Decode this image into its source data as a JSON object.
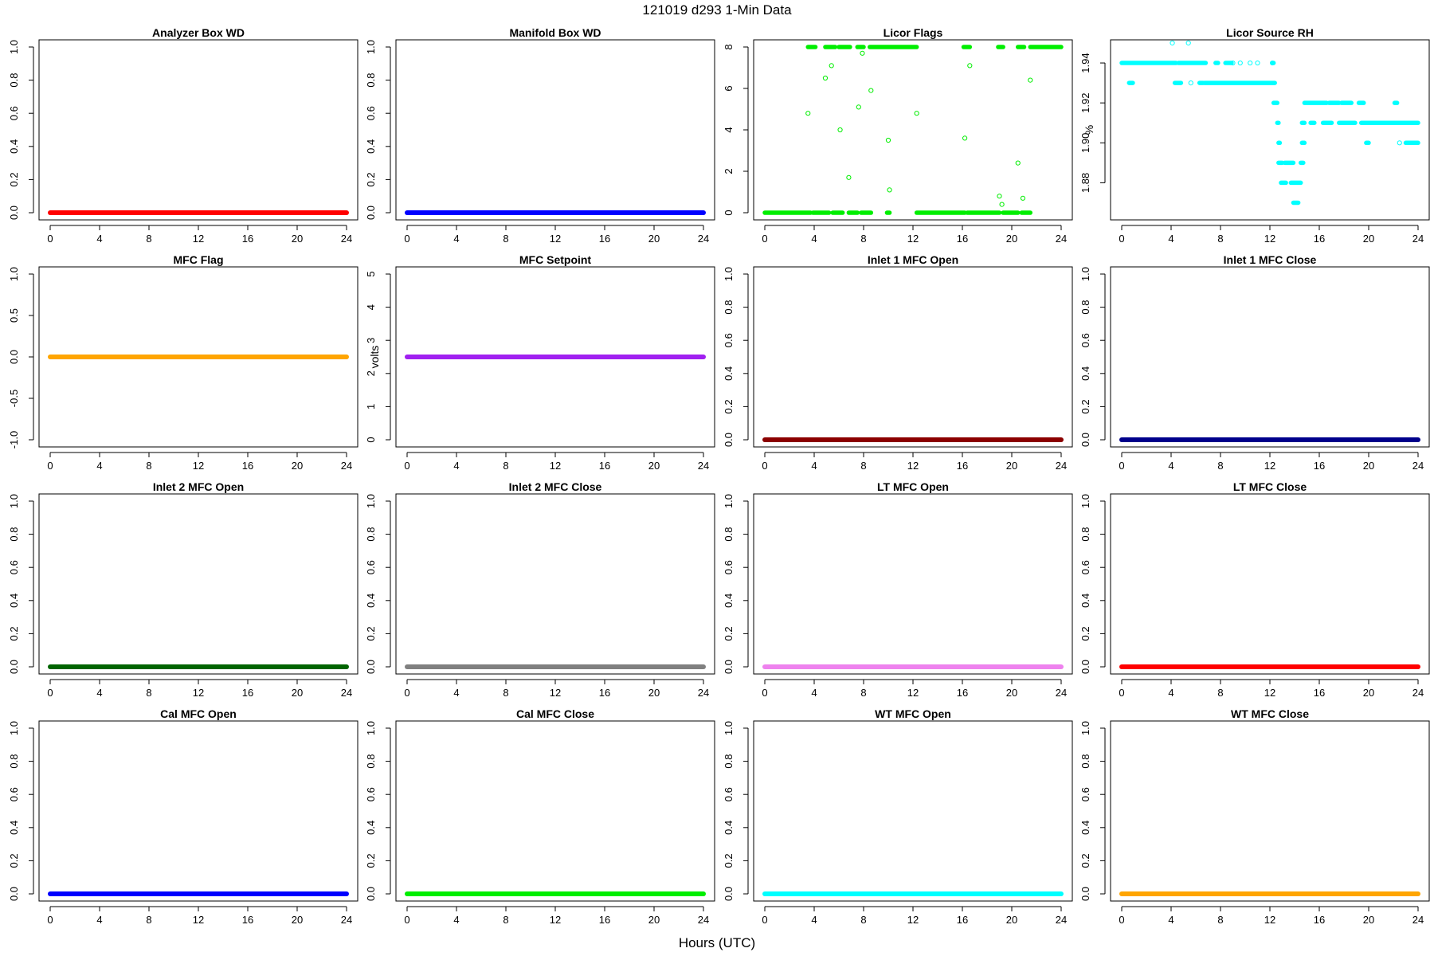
{
  "page": {
    "title": "121019   d293   1-Min Data",
    "xlabel": "Hours (UTC)"
  },
  "chart_data": [
    {
      "type": "scatter",
      "title": "Analyzer Box WD",
      "ylabel": "",
      "color": "#ff0000",
      "xlim": [
        0,
        24
      ],
      "xticks": [
        0,
        4,
        8,
        12,
        16,
        20,
        24
      ],
      "ylim": [
        0,
        1
      ],
      "yticks": [
        0,
        0.2,
        0.4,
        0.6,
        0.8,
        1
      ],
      "ytick_labels": [
        "0.0",
        "0.2",
        "0.4",
        "0.6",
        "0.8",
        "1.0"
      ],
      "constant": 0
    },
    {
      "type": "scatter",
      "title": "Manifold Box WD",
      "ylabel": "",
      "color": "#0000ff",
      "xlim": [
        0,
        24
      ],
      "xticks": [
        0,
        4,
        8,
        12,
        16,
        20,
        24
      ],
      "ylim": [
        0,
        1
      ],
      "yticks": [
        0,
        0.2,
        0.4,
        0.6,
        0.8,
        1
      ],
      "ytick_labels": [
        "0.0",
        "0.2",
        "0.4",
        "0.6",
        "0.8",
        "1.0"
      ],
      "constant": 0
    },
    {
      "type": "scatter",
      "title": "Licor Flags",
      "ylabel": "",
      "color": "#00ee00",
      "xlim": [
        0,
        24
      ],
      "xticks": [
        0,
        4,
        8,
        12,
        16,
        20,
        24
      ],
      "ylim": [
        0,
        8
      ],
      "yticks": [
        0,
        2,
        4,
        6,
        8
      ],
      "ytick_labels": [
        "0",
        "2",
        "4",
        "6",
        "8"
      ],
      "segments": [
        {
          "y": 0,
          "ranges": [
            [
              0,
              3.7
            ],
            [
              3.9,
              5.2
            ],
            [
              5.5,
              6.3
            ],
            [
              6.8,
              7.5
            ],
            [
              7.8,
              8.6
            ],
            [
              9.9,
              10.1
            ],
            [
              12.3,
              16.2
            ],
            [
              16.4,
              19.0
            ],
            [
              19.3,
              20.5
            ],
            [
              20.8,
              21.5
            ]
          ]
        },
        {
          "y": 8,
          "ranges": [
            [
              3.5,
              4.1
            ],
            [
              4.9,
              5.7
            ],
            [
              6.0,
              6.9
            ],
            [
              7.5,
              8.0
            ],
            [
              8.5,
              12.3
            ],
            [
              16.1,
              16.6
            ],
            [
              18.9,
              19.3
            ],
            [
              20.5,
              21.0
            ],
            [
              21.5,
              24.0
            ]
          ]
        }
      ],
      "outliers": [
        [
          3.5,
          4.8
        ],
        [
          4.9,
          6.5
        ],
        [
          5.4,
          7.1
        ],
        [
          6.1,
          4.0
        ],
        [
          6.8,
          1.7
        ],
        [
          7.6,
          5.1
        ],
        [
          7.9,
          7.7
        ],
        [
          8.6,
          5.9
        ],
        [
          10.0,
          3.5
        ],
        [
          10.1,
          1.1
        ],
        [
          12.3,
          4.8
        ],
        [
          16.2,
          3.6
        ],
        [
          16.6,
          7.1
        ],
        [
          19.0,
          0.8
        ],
        [
          19.2,
          0.4
        ],
        [
          20.5,
          2.4
        ],
        [
          20.9,
          0.7
        ],
        [
          21.5,
          6.4
        ]
      ]
    },
    {
      "type": "scatter",
      "title": "Licor Source RH",
      "ylabel": "%",
      "color": "#00ffff",
      "xlim": [
        0,
        24
      ],
      "xticks": [
        0,
        4,
        8,
        12,
        16,
        20,
        24
      ],
      "ylim": [
        1.865,
        1.948
      ],
      "yticks": [
        1.88,
        1.9,
        1.92,
        1.94
      ],
      "ytick_labels": [
        "1.88",
        "1.90",
        "1.92",
        "1.94"
      ],
      "segments": [
        {
          "y": 1.94,
          "ranges": [
            [
              0,
              4.4
            ],
            [
              4.6,
              6.8
            ],
            [
              7.6,
              7.8
            ],
            [
              8.4,
              8.9
            ],
            [
              12.2,
              12.3
            ]
          ]
        },
        {
          "y": 1.93,
          "ranges": [
            [
              0.6,
              0.9
            ],
            [
              4.3,
              4.8
            ],
            [
              6.3,
              6.6
            ],
            [
              6.7,
              12.4
            ]
          ]
        },
        {
          "y": 1.92,
          "ranges": [
            [
              12.3,
              12.6
            ],
            [
              14.8,
              16.6
            ],
            [
              16.8,
              17.6
            ],
            [
              17.8,
              18.6
            ],
            [
              19.2,
              19.6
            ],
            [
              22.1,
              22.3
            ]
          ]
        },
        {
          "y": 1.91,
          "ranges": [
            [
              12.6,
              12.7
            ],
            [
              14.6,
              14.8
            ],
            [
              15.3,
              15.6
            ],
            [
              16.3,
              17.0
            ],
            [
              17.6,
              18.9
            ],
            [
              19.4,
              24.0
            ]
          ]
        },
        {
          "y": 1.9,
          "ranges": [
            [
              12.7,
              12.8
            ],
            [
              14.6,
              14.8
            ],
            [
              19.8,
              20.0
            ],
            [
              23.0,
              24.0
            ]
          ]
        },
        {
          "y": 1.89,
          "ranges": [
            [
              12.7,
              13.0
            ],
            [
              13.2,
              13.9
            ],
            [
              14.5,
              14.7
            ]
          ]
        },
        {
          "y": 1.88,
          "ranges": [
            [
              12.9,
              13.3
            ],
            [
              13.7,
              14.5
            ]
          ]
        },
        {
          "y": 1.87,
          "ranges": [
            [
              13.9,
              14.3
            ]
          ]
        }
      ],
      "outliers": [
        [
          4.1,
          1.95
        ],
        [
          5.4,
          1.95
        ],
        [
          5.6,
          1.93
        ],
        [
          9.0,
          1.94
        ],
        [
          9.6,
          1.94
        ],
        [
          10.4,
          1.94
        ],
        [
          11.0,
          1.94
        ],
        [
          12.2,
          1.94
        ],
        [
          22.5,
          1.9
        ]
      ]
    },
    {
      "type": "scatter",
      "title": "MFC Flag",
      "ylabel": "",
      "color": "#ffa500",
      "xlim": [
        0,
        24
      ],
      "xticks": [
        0,
        4,
        8,
        12,
        16,
        20,
        24
      ],
      "ylim": [
        -1,
        1
      ],
      "yticks": [
        -1,
        -0.5,
        0,
        0.5,
        1
      ],
      "ytick_labels": [
        "-1.0",
        "-0.5",
        "0.0",
        "0.5",
        "1.0"
      ],
      "constant": 0
    },
    {
      "type": "scatter",
      "title": "MFC Setpoint",
      "ylabel": "volts",
      "color": "#a020f0",
      "xlim": [
        0,
        24
      ],
      "xticks": [
        0,
        4,
        8,
        12,
        16,
        20,
        24
      ],
      "ylim": [
        0,
        5
      ],
      "yticks": [
        0,
        1,
        2,
        3,
        4,
        5
      ],
      "ytick_labels": [
        "0",
        "1",
        "2",
        "3",
        "4",
        "5"
      ],
      "constant": 2.5
    },
    {
      "type": "scatter",
      "title": "Inlet 1 MFC Open",
      "ylabel": "",
      "color": "#8b0000",
      "xlim": [
        0,
        24
      ],
      "xticks": [
        0,
        4,
        8,
        12,
        16,
        20,
        24
      ],
      "ylim": [
        0,
        1
      ],
      "yticks": [
        0,
        0.2,
        0.4,
        0.6,
        0.8,
        1
      ],
      "ytick_labels": [
        "0.0",
        "0.2",
        "0.4",
        "0.6",
        "0.8",
        "1.0"
      ],
      "constant": 0
    },
    {
      "type": "scatter",
      "title": "Inlet 1 MFC Close",
      "ylabel": "",
      "color": "#00008b",
      "xlim": [
        0,
        24
      ],
      "xticks": [
        0,
        4,
        8,
        12,
        16,
        20,
        24
      ],
      "ylim": [
        0,
        1
      ],
      "yticks": [
        0,
        0.2,
        0.4,
        0.6,
        0.8,
        1
      ],
      "ytick_labels": [
        "0.0",
        "0.2",
        "0.4",
        "0.6",
        "0.8",
        "1.0"
      ],
      "constant": 0
    },
    {
      "type": "scatter",
      "title": "Inlet 2 MFC Open",
      "ylabel": "",
      "color": "#006400",
      "xlim": [
        0,
        24
      ],
      "xticks": [
        0,
        4,
        8,
        12,
        16,
        20,
        24
      ],
      "ylim": [
        0,
        1
      ],
      "yticks": [
        0,
        0.2,
        0.4,
        0.6,
        0.8,
        1
      ],
      "ytick_labels": [
        "0.0",
        "0.2",
        "0.4",
        "0.6",
        "0.8",
        "1.0"
      ],
      "constant": 0
    },
    {
      "type": "scatter",
      "title": "Inlet 2 MFC Close",
      "ylabel": "",
      "color": "#808080",
      "xlim": [
        0,
        24
      ],
      "xticks": [
        0,
        4,
        8,
        12,
        16,
        20,
        24
      ],
      "ylim": [
        0,
        1
      ],
      "yticks": [
        0,
        0.2,
        0.4,
        0.6,
        0.8,
        1
      ],
      "ytick_labels": [
        "0.0",
        "0.2",
        "0.4",
        "0.6",
        "0.8",
        "1.0"
      ],
      "constant": 0
    },
    {
      "type": "scatter",
      "title": "LT MFC Open",
      "ylabel": "",
      "color": "#ee82ee",
      "xlim": [
        0,
        24
      ],
      "xticks": [
        0,
        4,
        8,
        12,
        16,
        20,
        24
      ],
      "ylim": [
        0,
        1
      ],
      "yticks": [
        0,
        0.2,
        0.4,
        0.6,
        0.8,
        1
      ],
      "ytick_labels": [
        "0.0",
        "0.2",
        "0.4",
        "0.6",
        "0.8",
        "1.0"
      ],
      "constant": 0
    },
    {
      "type": "scatter",
      "title": "LT MFC Close",
      "ylabel": "",
      "color": "#ff0000",
      "xlim": [
        0,
        24
      ],
      "xticks": [
        0,
        4,
        8,
        12,
        16,
        20,
        24
      ],
      "ylim": [
        0,
        1
      ],
      "yticks": [
        0,
        0.2,
        0.4,
        0.6,
        0.8,
        1
      ],
      "ytick_labels": [
        "0.0",
        "0.2",
        "0.4",
        "0.6",
        "0.8",
        "1.0"
      ],
      "constant": 0
    },
    {
      "type": "scatter",
      "title": "Cal MFC Open",
      "ylabel": "",
      "color": "#0000ff",
      "xlim": [
        0,
        24
      ],
      "xticks": [
        0,
        4,
        8,
        12,
        16,
        20,
        24
      ],
      "ylim": [
        0,
        1
      ],
      "yticks": [
        0,
        0.2,
        0.4,
        0.6,
        0.8,
        1
      ],
      "ytick_labels": [
        "0.0",
        "0.2",
        "0.4",
        "0.6",
        "0.8",
        "1.0"
      ],
      "constant": 0
    },
    {
      "type": "scatter",
      "title": "Cal MFC Close",
      "ylabel": "",
      "color": "#00ee00",
      "xlim": [
        0,
        24
      ],
      "xticks": [
        0,
        4,
        8,
        12,
        16,
        20,
        24
      ],
      "ylim": [
        0,
        1
      ],
      "yticks": [
        0,
        0.2,
        0.4,
        0.6,
        0.8,
        1
      ],
      "ytick_labels": [
        "0.0",
        "0.2",
        "0.4",
        "0.6",
        "0.8",
        "1.0"
      ],
      "constant": 0
    },
    {
      "type": "scatter",
      "title": "WT MFC Open",
      "ylabel": "",
      "color": "#00ffff",
      "xlim": [
        0,
        24
      ],
      "xticks": [
        0,
        4,
        8,
        12,
        16,
        20,
        24
      ],
      "ylim": [
        0,
        1
      ],
      "yticks": [
        0,
        0.2,
        0.4,
        0.6,
        0.8,
        1
      ],
      "ytick_labels": [
        "0.0",
        "0.2",
        "0.4",
        "0.6",
        "0.8",
        "1.0"
      ],
      "constant": 0
    },
    {
      "type": "scatter",
      "title": "WT MFC Close",
      "ylabel": "",
      "color": "#ffa500",
      "xlim": [
        0,
        24
      ],
      "xticks": [
        0,
        4,
        8,
        12,
        16,
        20,
        24
      ],
      "ylim": [
        0,
        1
      ],
      "yticks": [
        0,
        0.2,
        0.4,
        0.6,
        0.8,
        1
      ],
      "ytick_labels": [
        "0.0",
        "0.2",
        "0.4",
        "0.6",
        "0.8",
        "1.0"
      ],
      "constant": 0
    }
  ]
}
